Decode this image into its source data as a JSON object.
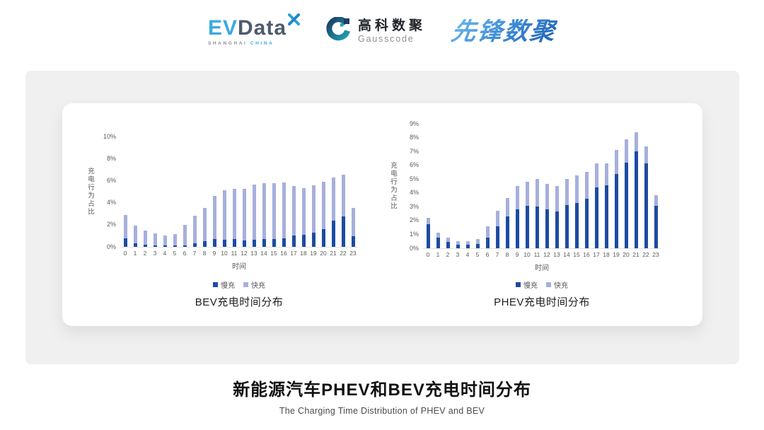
{
  "header": {
    "evdata": {
      "ev": "EV",
      "data": "Data",
      "sub_left": "SHANGHAI",
      "sub_right": "CHINA"
    },
    "gausscode": {
      "cn": "高科数聚",
      "en": "Gausscode"
    },
    "pioneer": {
      "text": "先锋数聚"
    }
  },
  "colors": {
    "slow": "#1c4ba3",
    "fast": "#a6b0db",
    "evdata_blue": "#3aabdf",
    "evdata_slate": "#4e5b6d",
    "gausscode_navy": "#1b3e63",
    "gausscode_teal": "#23a0b4",
    "panel_gray": "#f0f0f0"
  },
  "chart_data": [
    {
      "type": "bar",
      "stacked": true,
      "title": "BEV充电时间分布",
      "xlabel": "时间",
      "ylabel": "充电行为占比",
      "categories": [
        "0",
        "1",
        "2",
        "3",
        "4",
        "5",
        "6",
        "7",
        "8",
        "9",
        "10",
        "11",
        "12",
        "13",
        "14",
        "15",
        "16",
        "17",
        "18",
        "19",
        "20",
        "21",
        "22",
        "23"
      ],
      "series": [
        {
          "name": "慢充",
          "color": "#1c4ba3",
          "values": [
            0.8,
            0.35,
            0.2,
            0.1,
            0.1,
            0.1,
            0.15,
            0.35,
            0.5,
            0.7,
            0.65,
            0.7,
            0.6,
            0.65,
            0.7,
            0.7,
            0.8,
            1.0,
            1.1,
            1.3,
            1.6,
            2.4,
            2.75,
            0.95
          ]
        },
        {
          "name": "快充",
          "color": "#a6b0db",
          "values": [
            2.1,
            1.55,
            1.3,
            1.1,
            0.95,
            1.05,
            1.85,
            2.45,
            3.05,
            3.9,
            4.5,
            4.55,
            4.65,
            5.0,
            5.1,
            5.1,
            5.05,
            4.5,
            4.2,
            4.3,
            4.3,
            3.9,
            3.8,
            2.6
          ]
        }
      ],
      "ylim": [
        0,
        10
      ],
      "ytick_step": 2,
      "ytick_suffix": "%",
      "grid": false,
      "legend_position": "bottom"
    },
    {
      "type": "bar",
      "stacked": true,
      "title": "PHEV充电时间分布",
      "xlabel": "时间",
      "ylabel": "充电行为占比",
      "categories": [
        "0",
        "1",
        "2",
        "3",
        "4",
        "5",
        "6",
        "7",
        "8",
        "9",
        "10",
        "11",
        "12",
        "13",
        "14",
        "15",
        "16",
        "17",
        "18",
        "19",
        "20",
        "21",
        "22",
        "23"
      ],
      "series": [
        {
          "name": "慢充",
          "color": "#1c4ba3",
          "values": [
            1.75,
            0.75,
            0.45,
            0.25,
            0.25,
            0.3,
            0.75,
            1.6,
            2.3,
            2.8,
            3.05,
            3.0,
            2.8,
            2.65,
            3.1,
            3.3,
            3.6,
            4.4,
            4.55,
            5.35,
            6.2,
            7.0,
            6.15,
            3.05
          ]
        },
        {
          "name": "快充",
          "color": "#a6b0db",
          "values": [
            0.45,
            0.4,
            0.3,
            0.25,
            0.25,
            0.35,
            0.85,
            1.1,
            1.35,
            1.7,
            1.75,
            2.0,
            1.85,
            1.85,
            1.9,
            1.95,
            1.9,
            1.75,
            1.6,
            1.75,
            1.7,
            1.4,
            1.2,
            0.8
          ]
        }
      ],
      "ylim": [
        0,
        9
      ],
      "ytick_step": 1,
      "ytick_suffix": "%",
      "grid": false,
      "legend_position": "bottom"
    }
  ],
  "footer": {
    "title": "新能源汽车PHEV和BEV充电时间分布",
    "subtitle": "The Charging Time Distribution of PHEV and BEV"
  }
}
